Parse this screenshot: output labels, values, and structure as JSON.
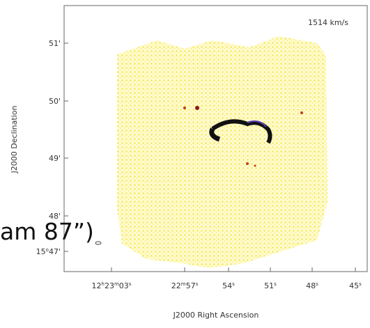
{
  "figure": {
    "velocity_label": "1514 km/s",
    "x_axis_label": "J2000 Right Ascension",
    "y_axis_label": "J2000 Declination",
    "x_tick_labels": [
      [
        "12",
        "h",
        "23",
        "m",
        "03",
        "s"
      ],
      [
        "22",
        "m",
        "57",
        "s"
      ],
      [
        "54",
        "s"
      ],
      [
        "51",
        "s"
      ],
      [
        "48",
        "s"
      ],
      [
        "45",
        "s"
      ]
    ],
    "y_tick_labels": [
      [
        "51'"
      ],
      [
        "50'"
      ],
      [
        "49'"
      ],
      [
        "48'"
      ],
      [
        "15",
        "o",
        "47'"
      ]
    ],
    "overlay_text": "am 87”)"
  }
}
